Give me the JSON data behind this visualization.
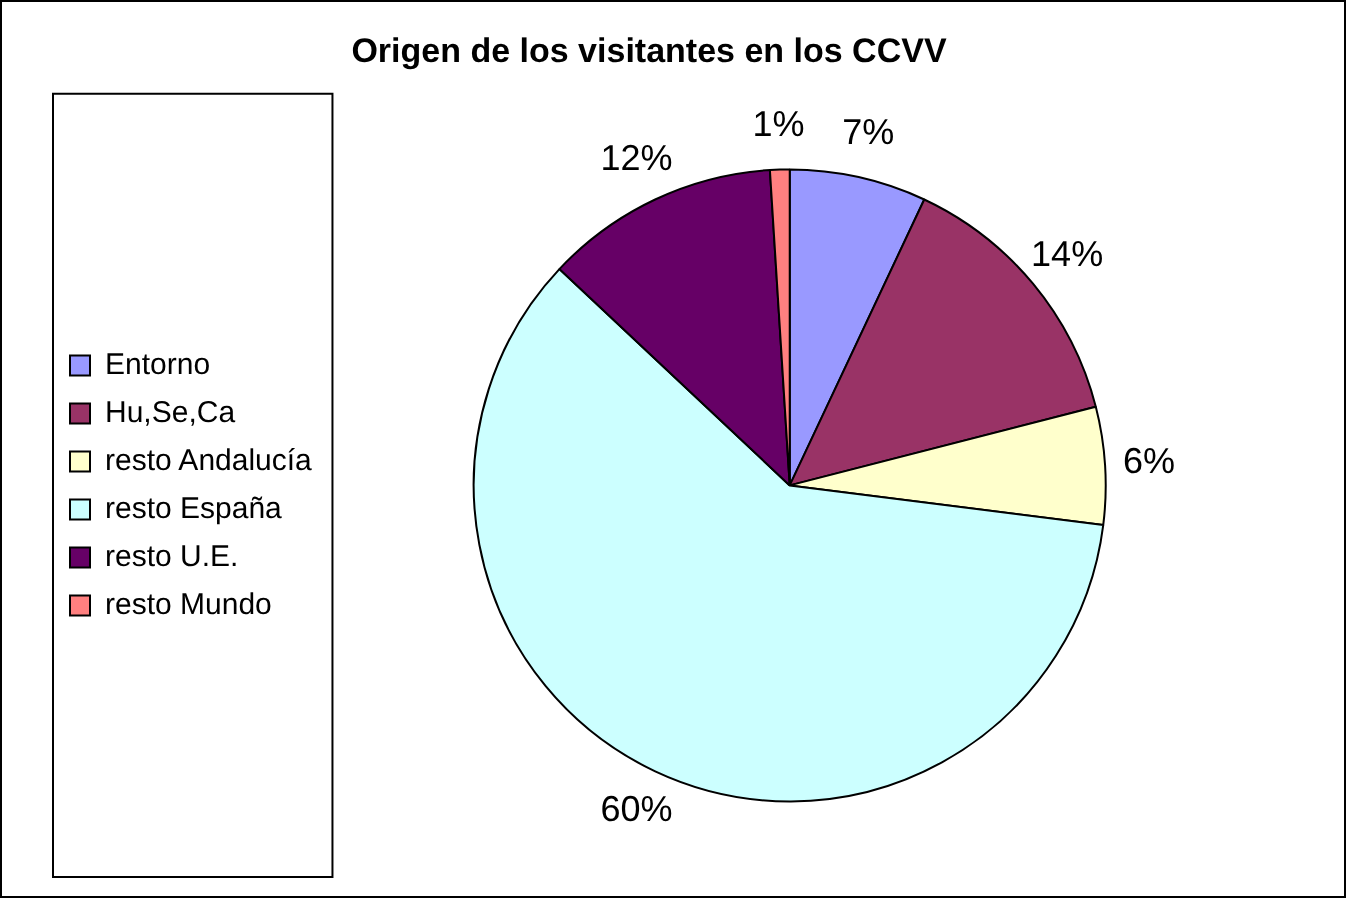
{
  "chart_data": {
    "type": "pie",
    "title": "Origen de los visitantes en los CCVV",
    "categories": [
      "Entorno",
      "Hu,Se,Ca",
      "resto Andalucía",
      "resto España",
      "resto U.E.",
      "resto Mundo"
    ],
    "values": [
      7,
      14,
      6,
      60,
      12,
      1
    ],
    "value_labels": [
      "7%",
      "14%",
      "6%",
      "60%",
      "12%",
      "1%"
    ],
    "colors": [
      "#9999ff",
      "#993366",
      "#ffffcc",
      "#ccffff",
      "#660066",
      "#ff8080"
    ],
    "legend": "left"
  }
}
